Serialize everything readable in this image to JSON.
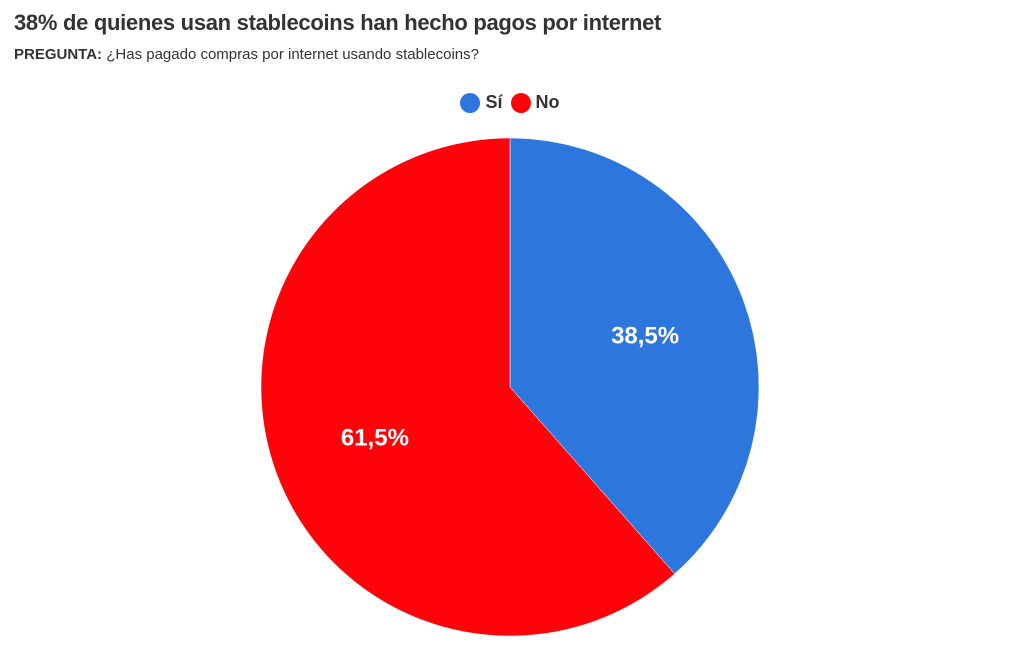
{
  "title": "38% de quienes usan stablecoins han hecho pagos por internet",
  "subtitle": {
    "prefix": "PREGUNTA:",
    "text": "¿Has pagado compras por internet usando stablecoins?"
  },
  "chart_data": {
    "type": "pie",
    "title": "38% de quienes usan stablecoins han hecho pagos por internet",
    "categories": [
      "Sí",
      "No"
    ],
    "values": [
      38.5,
      61.5
    ],
    "labels": [
      "38,5%",
      "61,5%"
    ],
    "colors": [
      "#2d76de",
      "#fe040a"
    ],
    "legend": "top-center"
  }
}
